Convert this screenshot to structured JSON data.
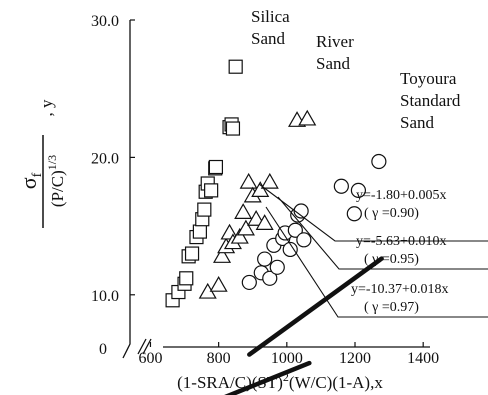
{
  "chart_data": {
    "type": "scatter",
    "xlabel_parts": [
      "(1-SRA/C)(ST)",
      "2",
      "(W/C)(1-A),x"
    ],
    "ylabel_parts": {
      "numerator": "σ",
      "numerator_sub": "f",
      "denominator": "(P/C)",
      "denominator_sup": "1/3",
      "suffix": ", y"
    },
    "x_ticks": [
      "600",
      "800",
      "1000",
      "1200",
      "1400"
    ],
    "x_tick_values": [
      600,
      800,
      1000,
      1200,
      1400
    ],
    "y_ticks": [
      "10.0",
      "20.0",
      "30.0"
    ],
    "y_tick_values": [
      10,
      20,
      30
    ],
    "y_origin_label": "0",
    "xlim": [
      540,
      1420
    ],
    "ylim": [
      6.2,
      30
    ],
    "series": [
      {
        "name_lines": [
          "Silica",
          "Sand"
        ],
        "marker": "square",
        "x": [
          665,
          682,
          700,
          705,
          712,
          722,
          735,
          745,
          752,
          758,
          762,
          768,
          778,
          790,
          792,
          832,
          838,
          842,
          850
        ],
        "y": [
          9.6,
          10.2,
          10.8,
          11.2,
          12.8,
          13.0,
          14.2,
          14.6,
          15.5,
          16.2,
          17.5,
          18.1,
          17.6,
          19.2,
          19.3,
          22.2,
          22.4,
          22.1,
          26.6
        ],
        "fit": {
          "intercept": -1.8,
          "slope": 0.005,
          "x_range": [
            655,
            860
          ]
        },
        "equation": "y=-1.80+0.005x",
        "gamma_line": "( γ =0.90)"
      },
      {
        "name_lines": [
          "River",
          "Sand"
        ],
        "marker": "triangle",
        "x": [
          768,
          800,
          810,
          822,
          832,
          842,
          862,
          872,
          880,
          888,
          900,
          910,
          922,
          935,
          950,
          1030,
          1060
        ],
        "y": [
          10.2,
          10.7,
          12.8,
          13.5,
          14.5,
          13.8,
          14.2,
          16.0,
          14.8,
          18.2,
          17.2,
          15.5,
          17.6,
          15.2,
          18.2,
          22.7,
          22.8
        ],
        "fit": {
          "intercept": -5.63,
          "slope": 0.01,
          "x_range": [
            762,
            1066
          ]
        },
        "equation": "y=-5.63+0.010x",
        "gamma_line": "( γ =0.95)"
      },
      {
        "name_lines": [
          "Toyoura",
          "Standard",
          "Sand"
        ],
        "marker": "circle",
        "x": [
          890,
          925,
          935,
          950,
          962,
          972,
          988,
          995,
          1010,
          1025,
          1032,
          1042,
          1050,
          1160,
          1198,
          1210,
          1270
        ],
        "y": [
          10.9,
          11.6,
          12.6,
          11.2,
          13.6,
          12.0,
          14.1,
          14.5,
          13.3,
          14.7,
          15.8,
          16.1,
          14.0,
          17.9,
          15.9,
          17.6,
          19.7
        ],
        "fit": {
          "intercept": -10.37,
          "slope": 0.018,
          "x_range": [
            890,
            1278
          ]
        },
        "equation": "y=-10.37+0.018x",
        "gamma_line": "( γ =0.97)"
      }
    ]
  }
}
